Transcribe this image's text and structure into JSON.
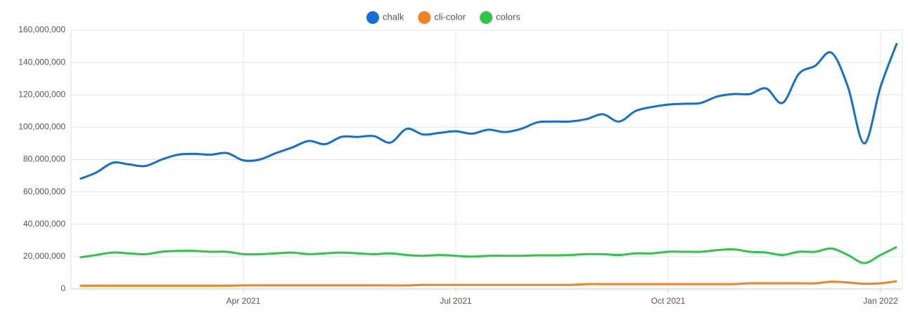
{
  "chart_data": {
    "type": "line",
    "categories": [
      null,
      null,
      null,
      null,
      null,
      null,
      null,
      null,
      null,
      null,
      "Apr 2021",
      null,
      null,
      null,
      null,
      null,
      null,
      null,
      null,
      null,
      null,
      null,
      null,
      "Jul 2021",
      null,
      null,
      null,
      null,
      null,
      null,
      null,
      null,
      null,
      null,
      null,
      null,
      "Oct 2021",
      null,
      null,
      null,
      null,
      null,
      null,
      null,
      null,
      null,
      null,
      null,
      null,
      "Jan 2022",
      null
    ],
    "series": [
      {
        "name": "chalk",
        "color": "#1170d6",
        "values": [
          68000000,
          72000000,
          78000000,
          77000000,
          76000000,
          80000000,
          83000000,
          83500000,
          83000000,
          84000000,
          79500000,
          80000000,
          84000000,
          87500000,
          91500000,
          89500000,
          94000000,
          94000000,
          94500000,
          90500000,
          99000000,
          95500000,
          96500000,
          97500000,
          96000000,
          98500000,
          97000000,
          99000000,
          103000000,
          103500000,
          103500000,
          105000000,
          108000000,
          103500000,
          110000000,
          112500000,
          114000000,
          114500000,
          115000000,
          119000000,
          120500000,
          120500000,
          124000000,
          115000000,
          133000000,
          138000000,
          146000000,
          125000000,
          90000000,
          125000000,
          152000000
        ]
      },
      {
        "name": "cli-color",
        "color": "#f68121",
        "values": [
          2000000,
          2000000,
          2000000,
          2000000,
          2000000,
          2000000,
          2000000,
          2000000,
          2000000,
          2000000,
          2200000,
          2200000,
          2200000,
          2200000,
          2200000,
          2200000,
          2200000,
          2200000,
          2200000,
          2200000,
          2200000,
          2500000,
          2500000,
          2500000,
          2500000,
          2500000,
          2500000,
          2500000,
          2500000,
          2500000,
          2500000,
          3000000,
          3000000,
          3000000,
          3000000,
          3000000,
          3000000,
          3000000,
          3000000,
          3000000,
          3000000,
          3500000,
          3500000,
          3500000,
          3500000,
          3500000,
          4500000,
          4000000,
          3200000,
          3500000,
          4800000
        ]
      },
      {
        "name": "colors",
        "color": "#2ec646",
        "values": [
          19500000,
          21000000,
          22500000,
          22000000,
          21500000,
          23000000,
          23500000,
          23500000,
          23000000,
          23000000,
          21500000,
          21500000,
          22000000,
          22500000,
          21500000,
          22000000,
          22500000,
          22000000,
          21500000,
          22000000,
          21000000,
          20500000,
          21000000,
          20500000,
          20000000,
          20500000,
          20500000,
          20500000,
          20800000,
          20800000,
          21000000,
          21500000,
          21500000,
          21000000,
          22000000,
          22000000,
          23000000,
          23000000,
          23000000,
          24000000,
          24500000,
          23000000,
          22500000,
          21000000,
          23000000,
          23000000,
          25000000,
          21000000,
          16000000,
          21000000,
          26000000
        ]
      }
    ],
    "ylim": [
      0,
      160000000
    ],
    "yticks": [
      0,
      {
        "value": 20000000,
        "label": "20,000,000"
      },
      {
        "value": 40000000,
        "label": "40,000,000"
      },
      {
        "value": 60000000,
        "label": "60,000,000"
      },
      {
        "value": 80000000,
        "label": "80,000,000"
      },
      {
        "value": 100000000,
        "label": "100,000,000"
      },
      {
        "value": 120000000,
        "label": "120,000,000"
      },
      {
        "value": 140000000,
        "label": "140,000,000"
      },
      {
        "value": 160000000,
        "label": "160,000,000"
      }
    ],
    "grid": true,
    "legend": "top"
  }
}
